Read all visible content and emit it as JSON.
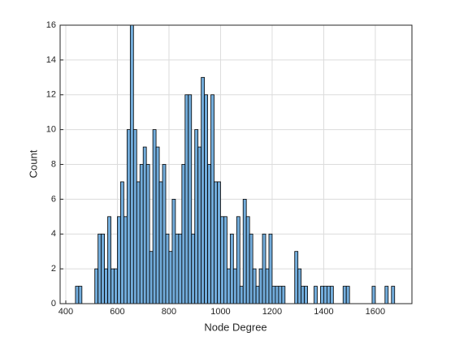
{
  "chart_data": {
    "type": "histogram",
    "xlabel": "Node Degree",
    "ylabel": "Count",
    "bins": [
      437.5,
      450,
      462.5,
      475,
      487.5,
      500,
      512.5,
      525,
      537.5,
      550,
      562.5,
      575,
      587.5,
      600,
      612.5,
      625,
      637.5,
      650,
      662.5,
      675,
      687.5,
      700,
      712.5,
      725,
      737.5,
      750,
      762.5,
      775,
      787.5,
      800,
      812.5,
      825,
      837.5,
      850,
      862.5,
      875,
      887.5,
      900,
      912.5,
      925,
      937.5,
      950,
      962.5,
      975,
      987.5,
      1000,
      1012.5,
      1025,
      1037.5,
      1050,
      1062.5,
      1075,
      1087.5,
      1100,
      1112.5,
      1125,
      1137.5,
      1150,
      1162.5,
      1175,
      1187.5,
      1200,
      1212.5,
      1225,
      1237.5,
      1250,
      1262.5,
      1275,
      1287.5,
      1300,
      1312.5,
      1325,
      1337.5,
      1350,
      1362.5,
      1375,
      1387.5,
      1400,
      1412.5,
      1425,
      1437.5,
      1450,
      1462.5,
      1475,
      1487.5,
      1500,
      1512.5,
      1525,
      1537.5,
      1550,
      1562.5,
      1575,
      1587.5,
      1600,
      1612.5,
      1625,
      1637.5,
      1650,
      1662.5,
      1675,
      1687.5
    ],
    "values": [
      1,
      1,
      0,
      0,
      0,
      0,
      2,
      4,
      4,
      2,
      5,
      2,
      2,
      5,
      7,
      5,
      10,
      16,
      10,
      7,
      8,
      9,
      8,
      3,
      10,
      9,
      7,
      8,
      4,
      3,
      6,
      4,
      4,
      8,
      12,
      12,
      4,
      10,
      9,
      13,
      12,
      8,
      12,
      7,
      7,
      5,
      5,
      2,
      4,
      2,
      5,
      1,
      6,
      5,
      4,
      2,
      1,
      2,
      4,
      2,
      4,
      1,
      1,
      1,
      1,
      0,
      0,
      0,
      3,
      2,
      1,
      1,
      0,
      0,
      1,
      0,
      1,
      1,
      1,
      1,
      0,
      0,
      0,
      1,
      1,
      0,
      0,
      0,
      0,
      0,
      0,
      0,
      1,
      0,
      0,
      0,
      1,
      0,
      1,
      0
    ],
    "color": "#72acdb",
    "xlim": [
      378,
      1742
    ],
    "xticks": [
      400,
      600,
      800,
      1000,
      1200,
      1400,
      1600
    ],
    "ylim": [
      0,
      16
    ],
    "yticks": [
      0,
      2,
      4,
      6,
      8,
      10,
      12,
      14,
      16
    ],
    "grid": true
  }
}
